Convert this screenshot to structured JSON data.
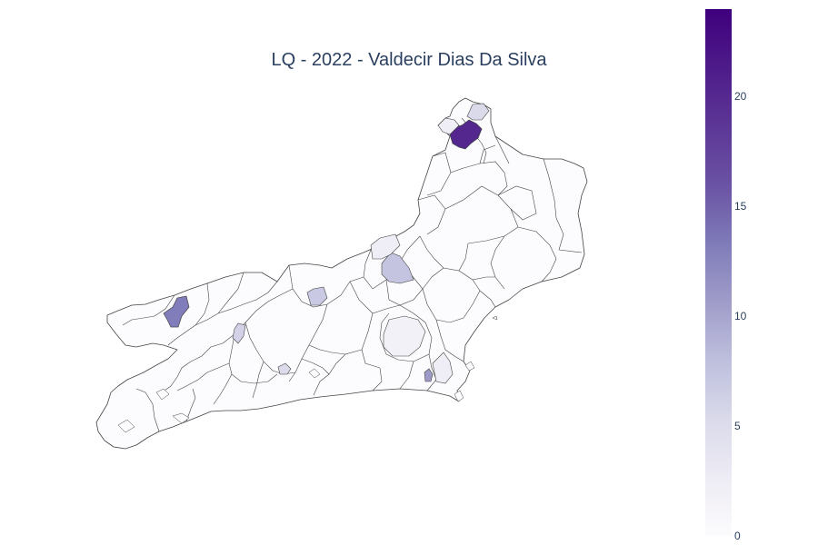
{
  "title": "LQ - 2022 - Valdecir Dias Da Silva",
  "colorscale": [
    "#fcfbfd",
    "#efedf5",
    "#dadaeb",
    "#bcbddc",
    "#9e9ac8",
    "#807dba",
    "#6a51a3",
    "#54278f",
    "#3f007d"
  ],
  "colorbar": {
    "min": 0,
    "max": 24,
    "ticks": [
      "0",
      "5",
      "10",
      "15",
      "20"
    ]
  },
  "highlights": [
    {
      "value": 22,
      "color": "#54278f"
    },
    {
      "value": 17,
      "color": "#807dba"
    },
    {
      "value": 15,
      "color": "#8f8ac4"
    },
    {
      "value": 9,
      "color": "#c4c4e0"
    },
    {
      "value": 8,
      "color": "#cac9e3"
    },
    {
      "value": 7,
      "color": "#d2d1e7"
    },
    {
      "value": 4,
      "color": "#eae8f3"
    },
    {
      "value": 3,
      "color": "#eeedf5"
    },
    {
      "value": 2,
      "color": "#f2f1f7"
    },
    {
      "value": 1,
      "color": "#f6f5fa"
    }
  ]
}
